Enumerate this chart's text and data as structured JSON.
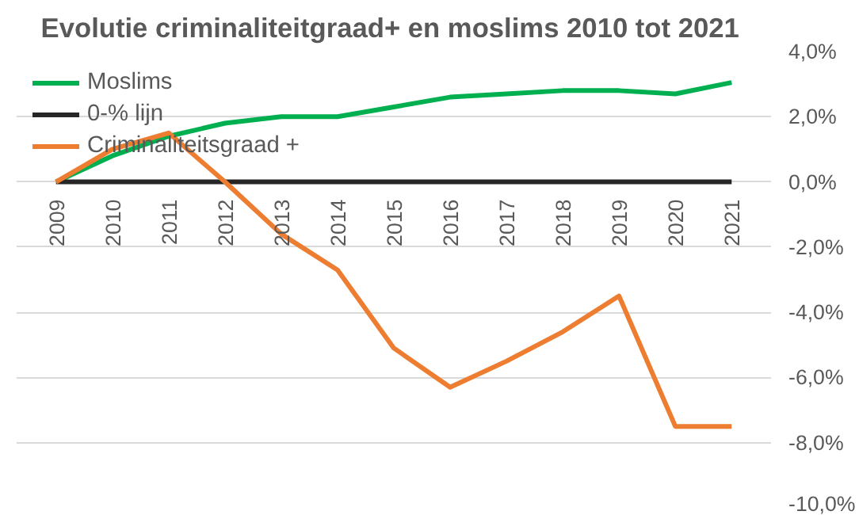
{
  "chart_data": {
    "type": "line",
    "title": "Evolutie criminaliteitgraad+  en moslims 2010 tot 2021",
    "categories": [
      "2009",
      "2010",
      "2011",
      "2012",
      "2013",
      "2014",
      "2015",
      "2016",
      "2017",
      "2018",
      "2019",
      "2020",
      "2021"
    ],
    "series": [
      {
        "name": "Moslims",
        "color": "#00b050",
        "values": [
          0,
          0.8,
          1.4,
          1.8,
          2.0,
          2.0,
          2.3,
          2.6,
          2.7,
          2.8,
          2.8,
          2.7,
          3.05
        ]
      },
      {
        "name": "0-% lijn",
        "color": "#262626",
        "values": [
          0,
          0,
          0,
          0,
          0,
          0,
          0,
          0,
          0,
          0,
          0,
          0,
          0
        ]
      },
      {
        "name": "Criminaliteitsgraad +",
        "color": "#ed7d31",
        "values": [
          0,
          1.0,
          1.5,
          0.0,
          -1.6,
          -2.7,
          -5.1,
          -6.3,
          -5.5,
          -4.6,
          -3.5,
          -7.5,
          -7.5
        ]
      }
    ],
    "ylim": [
      -10,
      4
    ],
    "yticks": [
      {
        "value": -10,
        "label": "-10,0%"
      },
      {
        "value": -8,
        "label": "-8,0%"
      },
      {
        "value": -6,
        "label": "-6,0%"
      },
      {
        "value": -4,
        "label": "-4,0%"
      },
      {
        "value": -2,
        "label": "-2,0%"
      },
      {
        "value": 0,
        "label": "0,0%"
      },
      {
        "value": 2,
        "label": "2,0%"
      },
      {
        "value": 4,
        "label": "4,0%"
      }
    ],
    "grid": "y",
    "legend": "top left",
    "marker": "none",
    "line_style": "solid"
  }
}
